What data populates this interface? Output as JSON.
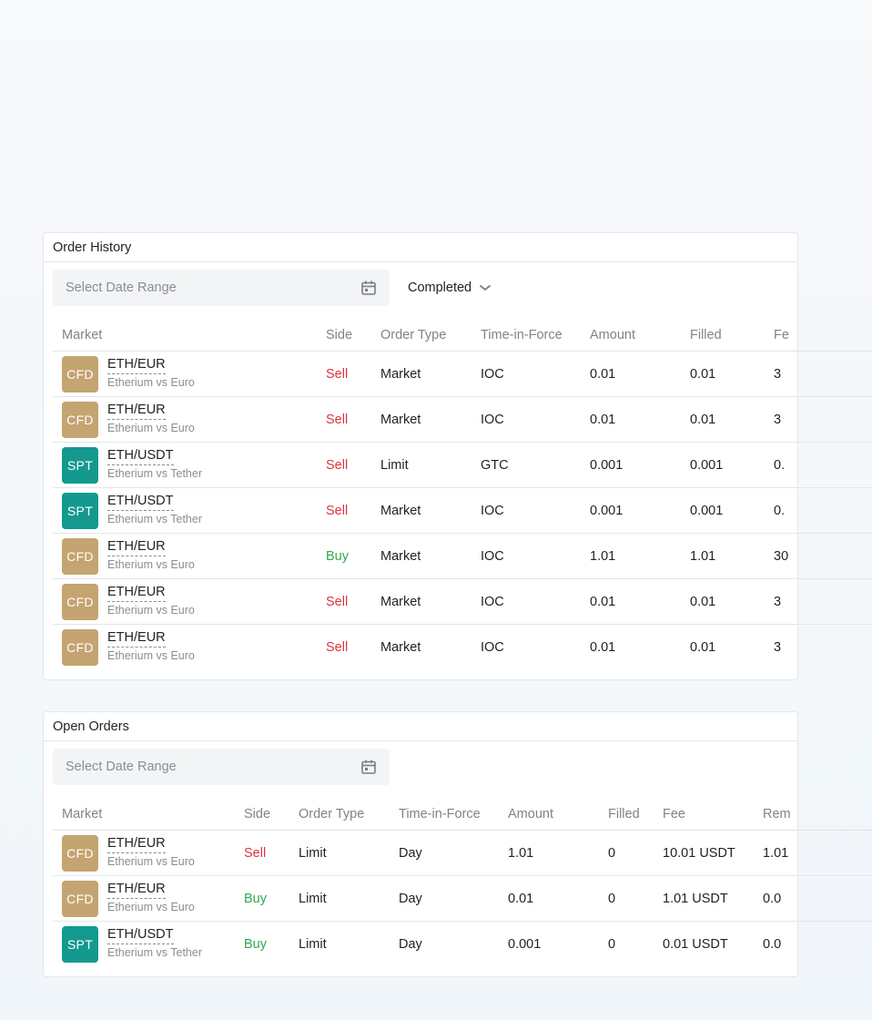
{
  "colors": {
    "cfd_badge": "#c4a470",
    "spt_badge": "#14998f",
    "sell": "#d9363e",
    "buy": "#2fa84f"
  },
  "order_history": {
    "title": "Order History",
    "date_placeholder": "Select Date Range",
    "status_filter": "Completed",
    "columns": [
      "Market",
      "Side",
      "Order Type",
      "Time-in-Force",
      "Amount",
      "Filled",
      "Fe"
    ],
    "rows": [
      {
        "badge": "CFD",
        "pair": "ETH/EUR",
        "desc": "Etherium vs Euro",
        "side": "Sell",
        "type": "Market",
        "tif": "IOC",
        "amount": "0.01",
        "filled": "0.01",
        "fee": "3"
      },
      {
        "badge": "CFD",
        "pair": "ETH/EUR",
        "desc": "Etherium vs Euro",
        "side": "Sell",
        "type": "Market",
        "tif": "IOC",
        "amount": "0.01",
        "filled": "0.01",
        "fee": "3"
      },
      {
        "badge": "SPT",
        "pair": "ETH/USDT",
        "desc": "Etherium vs Tether",
        "side": "Sell",
        "type": "Limit",
        "tif": "GTC",
        "amount": "0.001",
        "filled": "0.001",
        "fee": "0."
      },
      {
        "badge": "SPT",
        "pair": "ETH/USDT",
        "desc": "Etherium vs Tether",
        "side": "Sell",
        "type": "Market",
        "tif": "IOC",
        "amount": "0.001",
        "filled": "0.001",
        "fee": "0."
      },
      {
        "badge": "CFD",
        "pair": "ETH/EUR",
        "desc": "Etherium vs Euro",
        "side": "Buy",
        "type": "Market",
        "tif": "IOC",
        "amount": "1.01",
        "filled": "1.01",
        "fee": "30"
      },
      {
        "badge": "CFD",
        "pair": "ETH/EUR",
        "desc": "Etherium vs Euro",
        "side": "Sell",
        "type": "Market",
        "tif": "IOC",
        "amount": "0.01",
        "filled": "0.01",
        "fee": "3"
      },
      {
        "badge": "CFD",
        "pair": "ETH/EUR",
        "desc": "Etherium vs Euro",
        "side": "Sell",
        "type": "Market",
        "tif": "IOC",
        "amount": "0.01",
        "filled": "0.01",
        "fee": "3"
      }
    ]
  },
  "open_orders": {
    "title": "Open Orders",
    "date_placeholder": "Select Date Range",
    "columns": [
      "Market",
      "Side",
      "Order Type",
      "Time-in-Force",
      "Amount",
      "Filled",
      "Fee",
      "Rem"
    ],
    "rows": [
      {
        "badge": "CFD",
        "pair": "ETH/EUR",
        "desc": "Etherium vs Euro",
        "side": "Sell",
        "type": "Limit",
        "tif": "Day",
        "amount": "1.01",
        "filled": "0",
        "fee": "10.01 USDT",
        "rem": "1.01"
      },
      {
        "badge": "CFD",
        "pair": "ETH/EUR",
        "desc": "Etherium vs Euro",
        "side": "Buy",
        "type": "Limit",
        "tif": "Day",
        "amount": "0.01",
        "filled": "0",
        "fee": "1.01 USDT",
        "rem": "0.0"
      },
      {
        "badge": "SPT",
        "pair": "ETH/USDT",
        "desc": "Etherium vs Tether",
        "side": "Buy",
        "type": "Limit",
        "tif": "Day",
        "amount": "0.001",
        "filled": "0",
        "fee": "0.01 USDT",
        "rem": "0.0"
      }
    ]
  }
}
